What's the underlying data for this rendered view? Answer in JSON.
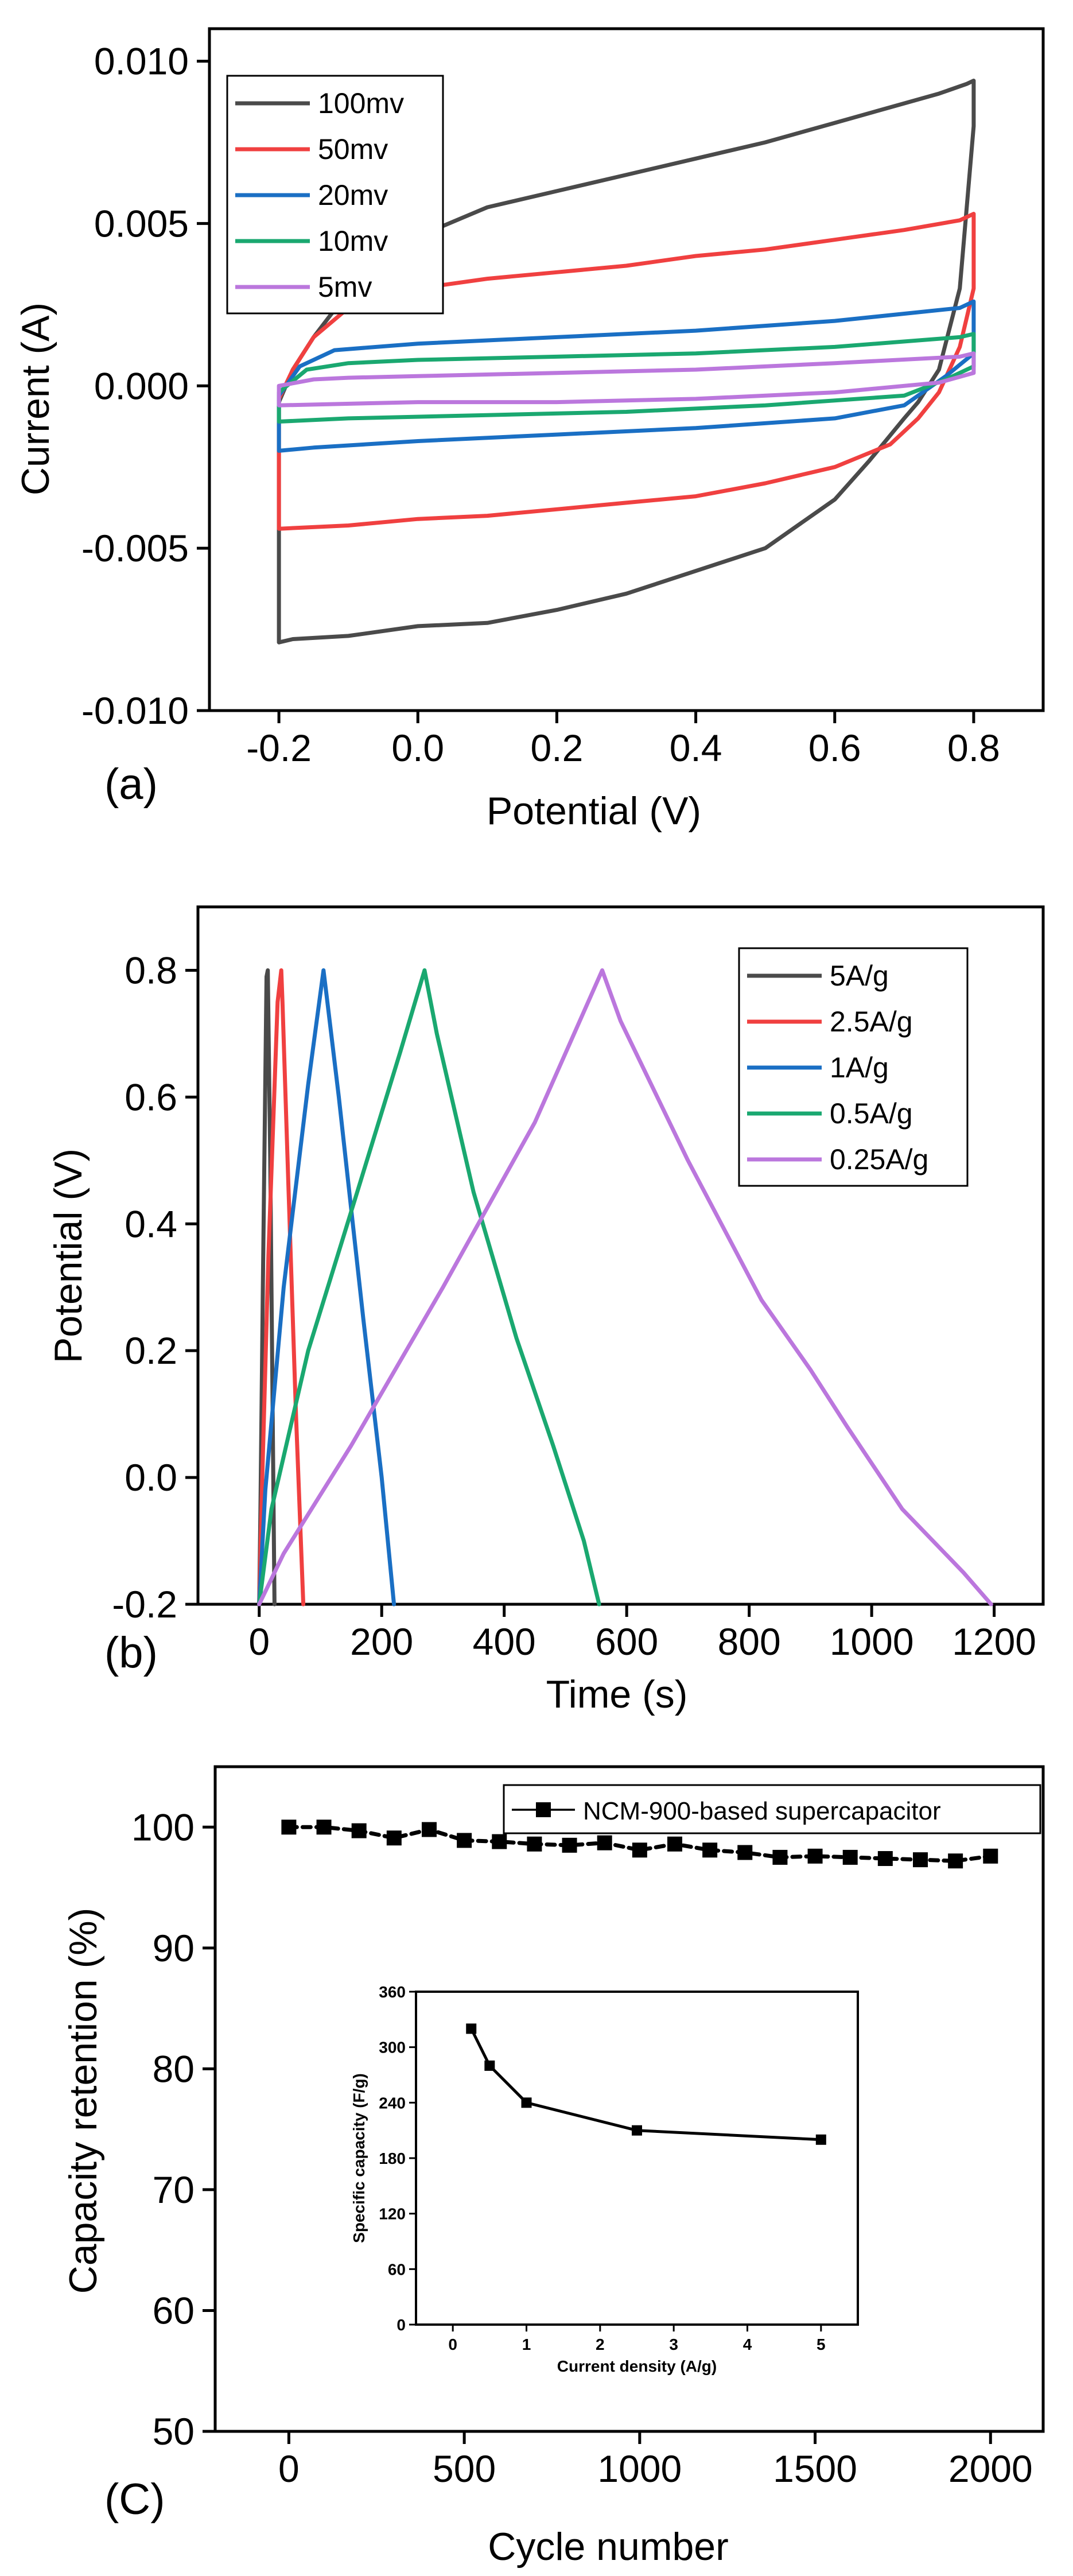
{
  "chart_data": [
    {
      "type": "line",
      "panel_label": "(a)",
      "title": "",
      "xlabel": "Potential (V)",
      "ylabel": "Current (A)",
      "xlim": [
        -0.3,
        0.9
      ],
      "ylim": [
        -0.01,
        0.011
      ],
      "xticks": [
        -0.2,
        0.0,
        0.2,
        0.4,
        0.6,
        0.8
      ],
      "xtick_labels": [
        "-0.2",
        "0.0",
        "0.2",
        "0.4",
        "0.6",
        "0.8"
      ],
      "yticks": [
        -0.01,
        -0.005,
        0.0,
        0.005,
        0.01
      ],
      "ytick_labels": [
        "-0.010",
        "-0.005",
        "0.000",
        "0.005",
        "0.010"
      ],
      "legend_position": "top-left",
      "series": [
        {
          "name": "100mv",
          "color": "#4a4a4a",
          "closed": true,
          "x": [
            -0.2,
            -0.18,
            -0.15,
            -0.1,
            -0.05,
            0.0,
            0.1,
            0.2,
            0.3,
            0.4,
            0.5,
            0.6,
            0.7,
            0.75,
            0.79,
            0.8,
            0.8,
            0.78,
            0.75,
            0.72,
            0.7,
            0.65,
            0.6,
            0.5,
            0.4,
            0.3,
            0.2,
            0.1,
            0.0,
            -0.1,
            -0.18,
            -0.2,
            -0.2
          ],
          "y": [
            -0.0005,
            0.0005,
            0.0015,
            0.0029,
            0.0038,
            0.0046,
            0.0055,
            0.006,
            0.0065,
            0.007,
            0.0075,
            0.0081,
            0.0087,
            0.009,
            0.0093,
            0.0094,
            0.008,
            0.003,
            0.0005,
            -0.0005,
            -0.001,
            -0.0023,
            -0.0035,
            -0.005,
            -0.0057,
            -0.0064,
            -0.0069,
            -0.0073,
            -0.0074,
            -0.0077,
            -0.0078,
            -0.0079,
            -0.0005
          ]
        },
        {
          "name": "50mv",
          "color": "#f04040",
          "closed": true,
          "x": [
            -0.2,
            -0.18,
            -0.15,
            -0.1,
            0.0,
            0.1,
            0.2,
            0.3,
            0.4,
            0.5,
            0.6,
            0.7,
            0.78,
            0.8,
            0.8,
            0.78,
            0.75,
            0.72,
            0.68,
            0.6,
            0.5,
            0.4,
            0.3,
            0.2,
            0.1,
            0.0,
            -0.1,
            -0.2,
            -0.2
          ],
          "y": [
            -0.0004,
            0.0005,
            0.0015,
            0.0024,
            0.003,
            0.0033,
            0.0035,
            0.0037,
            0.004,
            0.0042,
            0.0045,
            0.0048,
            0.0051,
            0.0053,
            0.003,
            0.0012,
            -0.0002,
            -0.001,
            -0.0018,
            -0.0025,
            -0.003,
            -0.0034,
            -0.0036,
            -0.0038,
            -0.004,
            -0.0041,
            -0.0043,
            -0.0044,
            -0.0004
          ]
        },
        {
          "name": "20mv",
          "color": "#1a6fc4",
          "closed": true,
          "x": [
            -0.2,
            -0.17,
            -0.12,
            0.0,
            0.2,
            0.4,
            0.6,
            0.78,
            0.8,
            0.8,
            0.76,
            0.7,
            0.6,
            0.4,
            0.2,
            0.0,
            -0.15,
            -0.2,
            -0.2
          ],
          "y": [
            -0.0003,
            0.0006,
            0.0011,
            0.0013,
            0.0015,
            0.0017,
            0.002,
            0.0024,
            0.0026,
            0.001,
            0.0003,
            -0.0006,
            -0.001,
            -0.0013,
            -0.0015,
            -0.0017,
            -0.0019,
            -0.002,
            -0.0003
          ]
        },
        {
          "name": "10mv",
          "color": "#1aa870",
          "closed": true,
          "x": [
            -0.2,
            -0.16,
            -0.1,
            0.0,
            0.2,
            0.4,
            0.6,
            0.78,
            0.8,
            0.8,
            0.76,
            0.7,
            0.5,
            0.3,
            0.1,
            -0.1,
            -0.2,
            -0.2
          ],
          "y": [
            -0.0002,
            0.0005,
            0.0007,
            0.0008,
            0.0009,
            0.001,
            0.0012,
            0.0015,
            0.0016,
            0.0006,
            0.0002,
            -0.0003,
            -0.0006,
            -0.0008,
            -0.0009,
            -0.001,
            -0.0011,
            -0.0002
          ]
        },
        {
          "name": "5mv",
          "color": "#bb77dd",
          "closed": true,
          "x": [
            -0.2,
            -0.15,
            -0.1,
            0.0,
            0.2,
            0.4,
            0.6,
            0.78,
            0.8,
            0.8,
            0.75,
            0.6,
            0.4,
            0.2,
            0.0,
            -0.2,
            -0.2
          ],
          "y": [
            0.0,
            0.0002,
            0.00025,
            0.0003,
            0.0004,
            0.0005,
            0.0007,
            0.0009,
            0.001,
            0.0004,
            0.0001,
            -0.0002,
            -0.0004,
            -0.0005,
            -0.0005,
            -0.0006,
            0.0
          ]
        }
      ]
    },
    {
      "type": "line",
      "panel_label": "(b)",
      "title": "",
      "xlabel": "Time (s)",
      "ylabel": "Potential (V)",
      "xlim": [
        -100,
        1280
      ],
      "ylim": [
        -0.2,
        0.9
      ],
      "xticks": [
        0,
        200,
        400,
        600,
        800,
        1000,
        1200
      ],
      "xtick_labels": [
        "0",
        "200",
        "400",
        "600",
        "800",
        "1000",
        "1200"
      ],
      "yticks": [
        -0.2,
        0.0,
        0.2,
        0.4,
        0.6,
        0.8
      ],
      "ytick_labels": [
        "-0.2",
        "0.0",
        "0.2",
        "0.4",
        "0.6",
        "0.8"
      ],
      "legend_position": "top-right",
      "series": [
        {
          "name": "5A/g",
          "color": "#4a4a4a",
          "x": [
            0,
            2,
            6,
            12,
            14,
            18,
            22,
            25
          ],
          "y": [
            -0.2,
            -0.05,
            0.3,
            0.79,
            0.8,
            0.5,
            0.1,
            -0.2
          ]
        },
        {
          "name": "2.5A/g",
          "color": "#f04040",
          "x": [
            0,
            5,
            15,
            30,
            36,
            38,
            48,
            60,
            72
          ],
          "y": [
            -0.2,
            0.0,
            0.35,
            0.75,
            0.8,
            0.75,
            0.45,
            0.1,
            -0.2
          ]
        },
        {
          "name": "1A/g",
          "color": "#1a6fc4",
          "x": [
            0,
            10,
            40,
            80,
            105,
            110,
            130,
            170,
            200,
            220
          ],
          "y": [
            -0.2,
            -0.02,
            0.3,
            0.62,
            0.8,
            0.76,
            0.6,
            0.25,
            0.0,
            -0.2
          ]
        },
        {
          "name": "0.5A/g",
          "color": "#1aa870",
          "x": [
            0,
            20,
            80,
            160,
            230,
            270,
            290,
            350,
            420,
            480,
            530,
            555
          ],
          "y": [
            -0.2,
            -0.05,
            0.2,
            0.45,
            0.67,
            0.8,
            0.7,
            0.45,
            0.22,
            0.05,
            -0.1,
            -0.2
          ]
        },
        {
          "name": "0.25A/g",
          "color": "#bb77dd",
          "x": [
            0,
            40,
            150,
            300,
            450,
            560,
            590,
            700,
            820,
            900,
            960,
            1050,
            1150,
            1195
          ],
          "y": [
            -0.2,
            -0.12,
            0.05,
            0.3,
            0.56,
            0.8,
            0.72,
            0.5,
            0.28,
            0.17,
            0.08,
            -0.05,
            -0.15,
            -0.2
          ]
        }
      ]
    },
    {
      "type": "line",
      "panel_label": "(C)",
      "title": "",
      "xlabel": "Cycle number",
      "ylabel": "Capacity retention (%)",
      "xlim": [
        -210,
        2150
      ],
      "ylim": [
        50,
        105
      ],
      "xticks": [
        0,
        500,
        1000,
        1500,
        2000
      ],
      "xtick_labels": [
        "0",
        "500",
        "1000",
        "1500",
        "2000"
      ],
      "yticks": [
        50,
        60,
        70,
        80,
        90,
        100
      ],
      "ytick_labels": [
        "50",
        "60",
        "70",
        "80",
        "90",
        "100"
      ],
      "legend_position": "top-right",
      "series": [
        {
          "name": "NCM-900-based supercapacitor",
          "color": "#000000",
          "x": [
            0,
            100,
            200,
            300,
            400,
            500,
            600,
            700,
            800,
            900,
            1000,
            1100,
            1200,
            1300,
            1400,
            1500,
            1600,
            1700,
            1800,
            1900,
            2000
          ],
          "y": [
            100,
            100,
            99.7,
            99.1,
            99.8,
            98.9,
            98.8,
            98.6,
            98.5,
            98.7,
            98.1,
            98.6,
            98.1,
            97.9,
            97.5,
            97.6,
            97.5,
            97.4,
            97.3,
            97.2,
            97.6
          ]
        }
      ],
      "inset": {
        "type": "line",
        "xlabel": "Current density (A/g)",
        "ylabel": "Specific capacity (F/g)",
        "xlim": [
          -0.5,
          5.5
        ],
        "ylim": [
          0,
          360
        ],
        "xticks": [
          0,
          1,
          2,
          3,
          4,
          5
        ],
        "xtick_labels": [
          "0",
          "1",
          "2",
          "3",
          "4",
          "5"
        ],
        "yticks": [
          0,
          60,
          120,
          180,
          240,
          300,
          360
        ],
        "ytick_labels": [
          "0",
          "60",
          "120",
          "180",
          "240",
          "300",
          "360"
        ],
        "series": [
          {
            "name": "specific capacity",
            "color": "#000000",
            "x": [
              0.25,
              0.5,
              1,
              2.5,
              5
            ],
            "y": [
              320,
              280,
              240,
              210,
              200
            ]
          }
        ]
      }
    }
  ]
}
